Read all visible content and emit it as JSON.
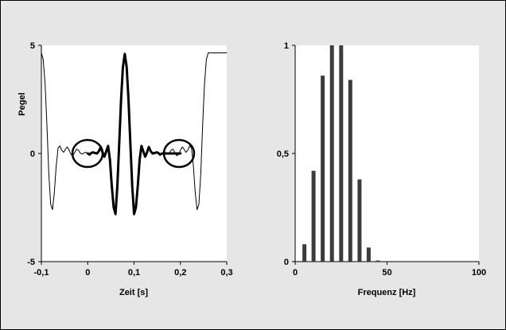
{
  "chart_data": [
    {
      "type": "line",
      "xlabel": "Zeit [s]",
      "ylabel": "Pegel",
      "xlim": [
        -0.1,
        0.3
      ],
      "ylim": [
        -5,
        5
      ],
      "x_ticks": [
        "-0,1",
        "0",
        "0,1",
        "0,2",
        "0,3"
      ],
      "y_ticks": [
        "5",
        "0",
        "-5"
      ],
      "grid": false,
      "annotations": [
        "circle around x=0 at y=0",
        "circle around x=0.2 at y=0"
      ],
      "series": [
        {
          "style": "thin",
          "x": [
            -0.1,
            -0.096,
            -0.092,
            -0.088,
            -0.084,
            -0.08,
            -0.076,
            -0.072,
            -0.068,
            -0.064,
            -0.06,
            -0.056,
            -0.052,
            -0.048,
            -0.044,
            -0.04,
            -0.036,
            -0.032,
            -0.028,
            -0.024,
            -0.02,
            -0.016,
            -0.012,
            -0.008,
            -0.004,
            0.0,
            0.004,
            0.008,
            0.012,
            0.016,
            0.02,
            0.024,
            0.028,
            0.032,
            0.036,
            0.04,
            0.044,
            0.048,
            0.052,
            0.056,
            0.06,
            0.064,
            0.068,
            0.072,
            0.076,
            0.08,
            0.084,
            0.088,
            0.092,
            0.096,
            0.1,
            0.104,
            0.108,
            0.112,
            0.116,
            0.12,
            0.124,
            0.128,
            0.132,
            0.136,
            0.14,
            0.144,
            0.148,
            0.152,
            0.156,
            0.16,
            0.164,
            0.168,
            0.172,
            0.176,
            0.18,
            0.184,
            0.188,
            0.192,
            0.196,
            0.2,
            0.204,
            0.208,
            0.212,
            0.216,
            0.22,
            0.224,
            0.228,
            0.232,
            0.236,
            0.24,
            0.244,
            0.248,
            0.252,
            0.256,
            0.26,
            0.264,
            0.268,
            0.272,
            0.276,
            0.28,
            0.284,
            0.288,
            0.292,
            0.296,
            0.3
          ],
          "y": [
            4.65,
            4.35,
            3.2,
            1.3,
            -0.9,
            -2.35,
            -2.6,
            -1.8,
            -0.6,
            0.25,
            0.35,
            0.15,
            0.05,
            0.2,
            0.3,
            0.15,
            -0.05,
            -0.1,
            0.05,
            0.2,
            0.15,
            0.02,
            -0.03,
            0.03,
            0.05,
            0.0,
            -0.05,
            0.03,
            0.05,
            0.02,
            0.0,
            0.1,
            0.25,
            0.05,
            -0.1,
            0.1,
            0.3,
            -0.2,
            -1.2,
            -2.4,
            -2.8,
            -1.9,
            0.2,
            2.4,
            4.1,
            4.65,
            4.1,
            2.4,
            0.2,
            -1.9,
            -2.8,
            -2.4,
            -1.2,
            -0.2,
            0.3,
            0.1,
            -0.1,
            0.05,
            0.25,
            0.1,
            0.0,
            0.02,
            0.05,
            0.03,
            -0.05,
            0.0,
            0.05,
            0.03,
            -0.03,
            0.02,
            0.15,
            0.2,
            0.05,
            -0.1,
            -0.05,
            0.15,
            0.3,
            0.2,
            0.05,
            0.15,
            0.35,
            0.25,
            -0.6,
            -1.8,
            -2.6,
            -2.35,
            -0.9,
            1.3,
            3.2,
            4.35,
            4.65,
            4.65,
            4.65,
            4.65,
            4.65,
            4.65,
            4.65,
            4.65,
            4.65,
            4.65,
            4.65
          ]
        },
        {
          "style": "thick",
          "x": [
            0.0,
            0.004,
            0.008,
            0.012,
            0.016,
            0.02,
            0.024,
            0.028,
            0.032,
            0.036,
            0.04,
            0.044,
            0.048,
            0.052,
            0.056,
            0.06,
            0.064,
            0.068,
            0.072,
            0.076,
            0.08,
            0.084,
            0.088,
            0.092,
            0.096,
            0.1,
            0.104,
            0.108,
            0.112,
            0.116,
            0.12,
            0.124,
            0.128,
            0.132,
            0.136,
            0.14,
            0.144,
            0.148,
            0.152,
            0.156,
            0.16,
            0.164,
            0.168,
            0.172,
            0.176,
            0.18,
            0.184,
            0.188,
            0.192,
            0.196,
            0.2
          ],
          "y": [
            0.0,
            -0.05,
            0.03,
            0.05,
            0.02,
            0.0,
            0.1,
            0.3,
            0.05,
            -0.15,
            0.1,
            0.35,
            -0.3,
            -1.5,
            -2.5,
            -2.8,
            -1.5,
            0.5,
            2.5,
            4.0,
            4.6,
            4.0,
            2.5,
            0.5,
            -1.5,
            -2.8,
            -2.5,
            -1.5,
            -0.3,
            0.35,
            0.1,
            -0.15,
            0.05,
            0.3,
            0.1,
            0.0,
            0.02,
            0.05,
            0.03,
            -0.05,
            0.0,
            0.0,
            0.0,
            0.0,
            0.0,
            0.0,
            0.0,
            0.0,
            0.0,
            0.0,
            0.0
          ]
        }
      ]
    },
    {
      "type": "bar",
      "xlabel": "Frequenz [Hz]",
      "ylabel": "",
      "xlim": [
        0,
        100
      ],
      "ylim": [
        0,
        1
      ],
      "x_ticks": [
        "0",
        "50",
        "100"
      ],
      "y_ticks": [
        "1",
        "0,5",
        "0"
      ],
      "grid": false,
      "series": [
        {
          "x": [
            5,
            10,
            15,
            20,
            25,
            30,
            35,
            40,
            45
          ],
          "values": [
            0.08,
            0.42,
            0.86,
            1.0,
            1.0,
            0.84,
            0.38,
            0.065,
            0.005
          ]
        }
      ]
    }
  ]
}
